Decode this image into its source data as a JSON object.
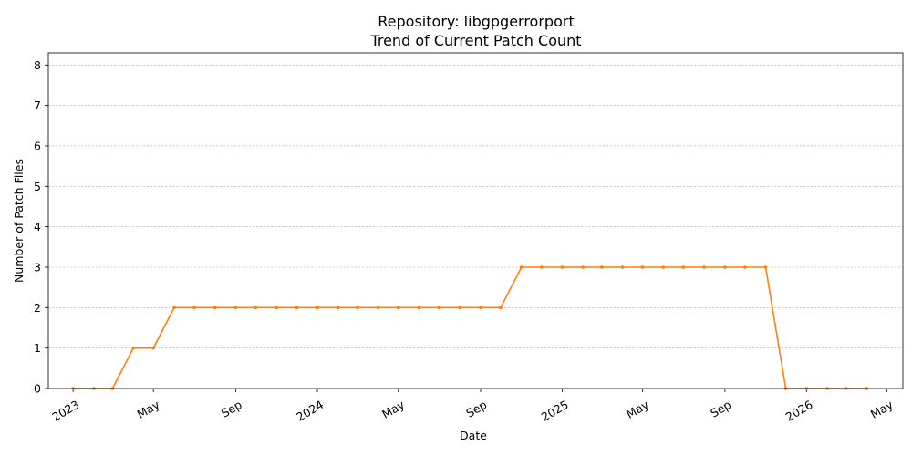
{
  "chart_data": {
    "type": "line",
    "title": "Repository: libgpgerrorport",
    "subtitle": "Trend of Current Patch Count",
    "xlabel": "Date",
    "ylabel": "Number of Patch Files",
    "ylim": [
      0,
      8.3
    ],
    "xlim": [
      "2022-11-25",
      "2026-05-25"
    ],
    "grid": "horizontal dashed",
    "y_ticks": [
      0,
      1,
      2,
      3,
      4,
      5,
      6,
      7,
      8
    ],
    "x_ticks": [
      {
        "date": "2023-01-01",
        "label": "2023"
      },
      {
        "date": "2023-05-01",
        "label": "May"
      },
      {
        "date": "2023-09-01",
        "label": "Sep"
      },
      {
        "date": "2024-01-01",
        "label": "2024"
      },
      {
        "date": "2024-05-01",
        "label": "May"
      },
      {
        "date": "2024-09-01",
        "label": "Sep"
      },
      {
        "date": "2025-01-01",
        "label": "2025"
      },
      {
        "date": "2025-05-01",
        "label": "May"
      },
      {
        "date": "2025-09-01",
        "label": "Sep"
      },
      {
        "date": "2026-01-01",
        "label": "2026"
      },
      {
        "date": "2026-05-01",
        "label": "May"
      }
    ],
    "series": [
      {
        "color": "#ff7f0e",
        "x": [
          "2023-01-01",
          "2023-02-01",
          "2023-03-01",
          "2023-04-01",
          "2023-05-01",
          "2023-06-01",
          "2023-07-01",
          "2023-08-01",
          "2023-09-01",
          "2023-10-01",
          "2023-11-01",
          "2023-12-01",
          "2024-01-01",
          "2024-02-01",
          "2024-03-01",
          "2024-04-01",
          "2024-05-01",
          "2024-06-01",
          "2024-07-01",
          "2024-08-01",
          "2024-09-01",
          "2024-10-01",
          "2024-11-01",
          "2024-12-01",
          "2025-01-01",
          "2025-02-01",
          "2025-03-01",
          "2025-04-01",
          "2025-05-01",
          "2025-06-01",
          "2025-07-01",
          "2025-08-01",
          "2025-09-01",
          "2025-10-01",
          "2025-11-01",
          "2025-12-01",
          "2026-01-01",
          "2026-02-01",
          "2026-03-01",
          "2026-04-01"
        ],
        "values": [
          0,
          0,
          0,
          1,
          1,
          2,
          2,
          2,
          2,
          2,
          2,
          2,
          2,
          2,
          2,
          2,
          2,
          2,
          2,
          2,
          2,
          2,
          3,
          3,
          3,
          3,
          3,
          3,
          3,
          3,
          3,
          3,
          3,
          3,
          3,
          0,
          0,
          0,
          0,
          0
        ]
      }
    ]
  }
}
